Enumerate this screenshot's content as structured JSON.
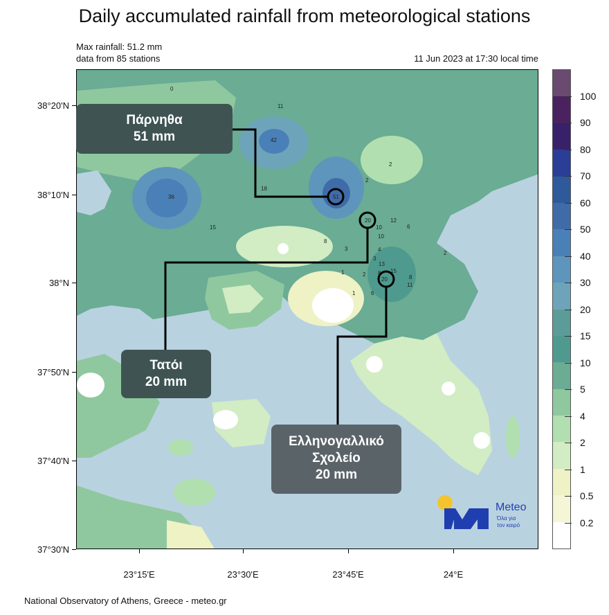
{
  "title": "Daily accumulated rainfall from meteorological stations",
  "info": {
    "max_rainfall": "Max rainfall: 51.2 mm",
    "stations": "data from 85 stations",
    "datetime": "11 Jun 2023 at 17:30 local time"
  },
  "lat_labels": [
    "38°20'N",
    "38°10'N",
    "38°N",
    "37°50'N",
    "37°40'N",
    "37°30'N"
  ],
  "lon_labels": [
    "23°15'E",
    "23°30'E",
    "23°45'E",
    "24°E"
  ],
  "callouts": {
    "parnitha": {
      "name": "Πάρνηθα",
      "value": "51 mm"
    },
    "tatoi": {
      "name": "Τατόι",
      "value": "20 mm"
    },
    "school": {
      "name_line1": "Ελληνογαλλικό",
      "name_line2": "Σχολείο",
      "value": "20 mm"
    }
  },
  "logo": {
    "name": "Meteo",
    "slogan_line1": "Όλα για",
    "slogan_line2": "τον καιρό"
  },
  "colorbar": {
    "labels": [
      "100",
      "90",
      "80",
      "70",
      "60",
      "50",
      "40",
      "30",
      "20",
      "15",
      "10",
      "5",
      "4",
      "2",
      "1",
      "0.5",
      "0.2"
    ],
    "colors": [
      "#6b4a72",
      "#4a2260",
      "#38216a",
      "#2a3e98",
      "#2e5a9c",
      "#3f6ca8",
      "#4a80b8",
      "#5e95bc",
      "#6ea4ba",
      "#5b9c98",
      "#4f9a8e",
      "#6aac94",
      "#8fc89e",
      "#b2dfb0",
      "#d2ecc4",
      "#eef2c4",
      "#f4f6d6",
      "#ffffff"
    ]
  },
  "stations": [
    "51",
    "42",
    "36",
    "20",
    "20",
    "18",
    "15",
    "15",
    "13",
    "12",
    "11",
    "11",
    "10",
    "10",
    "8",
    "8",
    "8",
    "6",
    "6",
    "4",
    "3",
    "3",
    "2",
    "2",
    "2",
    "2",
    "1",
    "1",
    "0"
  ],
  "footer": "National Observatory of Athens, Greece - meteo.gr"
}
